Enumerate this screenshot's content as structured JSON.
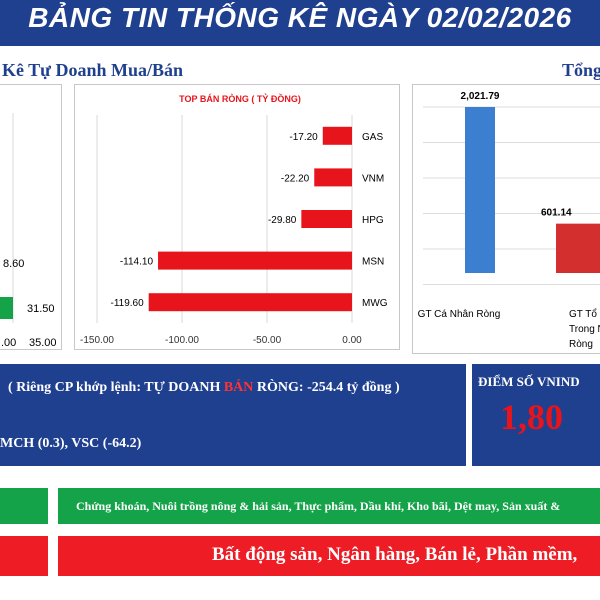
{
  "header": {
    "title": "BẢNG TIN THỐNG KÊ NGÀY 02/02/2026"
  },
  "sections": {
    "left_title": "Kê Tự Doanh Mua/Bán",
    "right_title": "Tổng"
  },
  "left_panel_fragment": {
    "label_a": "8.60",
    "label_b": "31.50",
    "tick_a": ".00",
    "tick_b": "35.00"
  },
  "chart_data": [
    {
      "type": "bar",
      "orientation": "horizontal",
      "title": "TOP BÁN RÒNG ( TỶ ĐỒNG)",
      "categories": [
        "GAS",
        "VNM",
        "HPG",
        "MSN",
        "MWG"
      ],
      "values": [
        -17.2,
        -22.2,
        -29.8,
        -114.1,
        -119.6
      ],
      "value_labels": [
        "-17.20",
        "-22.20",
        "-29.80",
        "-114.10",
        "-119.60"
      ],
      "xlim": [
        -150,
        0
      ],
      "xticks": [
        "-150.00",
        "-100.00",
        "-50.00",
        "0.00"
      ],
      "grid": true,
      "colors": {
        "bar": "#e8141c"
      }
    },
    {
      "type": "bar",
      "title": "",
      "categories": [
        "GT Cá Nhân Ròng",
        "GT Tổ Chức Trong Nước Ròng"
      ],
      "category_lines": [
        [
          "GT Cá Nhân Ròng"
        ],
        [
          "GT Tổ Ch",
          "Trong Nư",
          "Ròng"
        ]
      ],
      "values": [
        2021.79,
        601.14
      ],
      "value_labels": [
        "2,021.79",
        "601.14"
      ],
      "grid": true,
      "colors": {
        "bar1": "#3c7fd0",
        "bar2": "#d42f2f"
      }
    }
  ],
  "info": {
    "line1_prefix": "( Riêng CP khớp lệnh: TỰ DOANH ",
    "line1_highlight": "BÁN",
    "line1_suffix": " RÒNG: -254.4 tỷ đồng )",
    "line2": "MCH (0.3), VSC (-64.2)"
  },
  "vnindex": {
    "label": "ĐIỂM SỐ VNIND",
    "value": "1,80"
  },
  "sectors": {
    "up": "Chứng khoán, Nuôi trồng nông & hải sản, Thực phẩm, Dầu khí, Kho bãi, Dệt may, Sản xuất &",
    "down": "Bất động sản, Ngân hàng, Bán lẻ, Phần mềm,"
  },
  "colors": {
    "navy": "#1f3f8f",
    "green": "#15a34a",
    "red": "#ee1c24",
    "highlight": "#ff3333",
    "vn_value": "#e8141c"
  }
}
